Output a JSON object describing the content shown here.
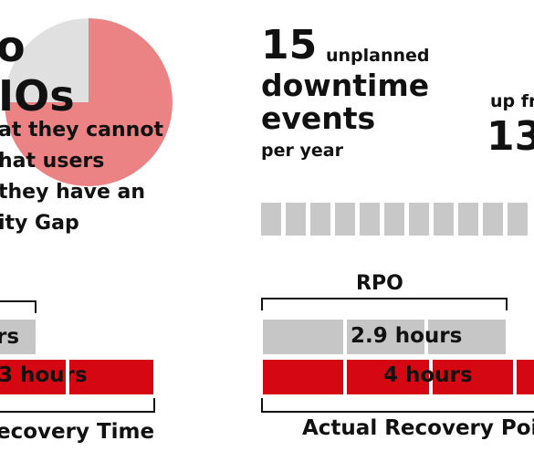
{
  "left": {
    "headline_fragment_1": "o",
    "headline_fragment_2": "IOs",
    "body_lines": [
      "at they cannot",
      "hat users",
      "they have an",
      "ity Gap"
    ],
    "bar_top_label": "rs",
    "bar_bottom_label": "3 hours",
    "footer_label": "ecovery Time",
    "pie_shown_fraction": 0.75
  },
  "right": {
    "events_number": "15",
    "events_suffix": "unplanned",
    "line_2": "downtime",
    "line_3": "events",
    "line_4": "per year",
    "up_from_fragment": "up fr",
    "up_from_number_fragment": "13",
    "rpo_title": "RPO",
    "rpo_value": "2.9 hours",
    "actual_value": "4 hours",
    "footer_label": "Actual Recovery Poi"
  },
  "colors": {
    "accent_red": "#d40713",
    "pie_red": "#eb8385",
    "pie_grey": "#e0e0e0",
    "bar_grey": "#c6c6c6",
    "segment_grey": "#c8c8c8"
  }
}
